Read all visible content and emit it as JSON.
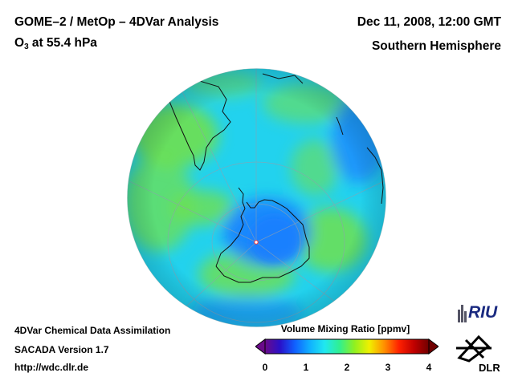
{
  "header": {
    "title_left": "GOME–2 / MetOp – 4DVar Analysis",
    "species_prefix": "O",
    "species_sub": "3",
    "species_suffix": " at 55.4 hPa",
    "date": "Dec 11, 2008, 12:00 GMT",
    "region": "Southern Hemisphere"
  },
  "footer": {
    "line1": "4DVar Chemical Data Assimilation",
    "line2": "SACADA Version 1.7",
    "line3": "http://wdc.dlr.de"
  },
  "colorbar": {
    "title": "Volume Mixing Ratio [ppmv]",
    "ticks": [
      "0",
      "1",
      "2",
      "3",
      "4"
    ],
    "min": 0,
    "max": 4,
    "colors": [
      "#6a0a8a",
      "#2a10c8",
      "#1060ff",
      "#10b0ff",
      "#20e8f0",
      "#30f090",
      "#90f020",
      "#f0f000",
      "#ff9000",
      "#ff2000",
      "#c00000",
      "#700000"
    ]
  },
  "map": {
    "projection": "orthographic",
    "hemisphere": "Southern",
    "colors": {
      "ocean_base": "#22d2ee",
      "high": "#6fe050",
      "depletion": "#1a7dff",
      "coast": "#111111",
      "grid": "#8fa0b0"
    }
  },
  "logos": {
    "riu": "RIU",
    "dlr": "DLR"
  }
}
